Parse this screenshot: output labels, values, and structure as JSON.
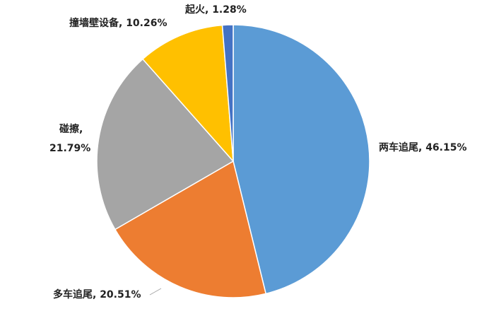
{
  "chart_data": {
    "type": "pie",
    "title": "",
    "slices": [
      {
        "label": "两车追尾",
        "value": 46.15,
        "display": "46.15%",
        "color": "#5B9BD5"
      },
      {
        "label": "多车追尾",
        "value": 20.51,
        "display": "20.51%",
        "color": "#ED7D31"
      },
      {
        "label": "碰擦",
        "value": 21.79,
        "display": "21.79%",
        "color": "#A5A5A5"
      },
      {
        "label": "撞墙壁设备",
        "value": 10.26,
        "display": "10.26%",
        "color": "#FFC000"
      },
      {
        "label": "起火",
        "value": 1.28,
        "display": "1.28%",
        "color": "#4472C4"
      }
    ],
    "start": "12 o'clock",
    "direction": "clockwise",
    "legend": "none"
  }
}
